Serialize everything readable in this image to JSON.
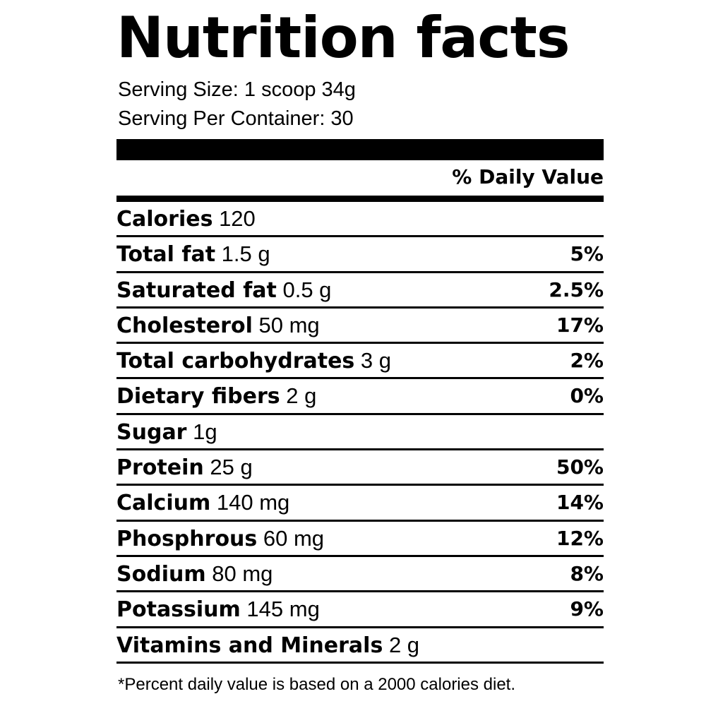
{
  "title": "Nutrition facts",
  "serving_size": "Serving Size: 1 scoop 34g",
  "servings_per_container": "Serving Per Container: 30",
  "daily_value_header": "% Daily Value",
  "nutrients": [
    {
      "name": "Calories",
      "amount": "120",
      "percent": ""
    },
    {
      "name": "Total fat",
      "amount": "1.5 g",
      "percent": "5%"
    },
    {
      "name": "Saturated fat",
      "amount": "0.5 g",
      "percent": "2.5%"
    },
    {
      "name": "Cholesterol",
      "amount": "50 mg",
      "percent": "17%"
    },
    {
      "name": "Total carbohydrates",
      "amount": "3 g",
      "percent": "2%"
    },
    {
      "name": "Dietary fibers",
      "amount": "2 g",
      "percent": "0%"
    },
    {
      "name": "Sugar",
      "amount": "1g",
      "percent": ""
    },
    {
      "name": "Protein",
      "amount": "25 g",
      "percent": "50%"
    },
    {
      "name": "Calcium",
      "amount": "140 mg",
      "percent": "14%"
    },
    {
      "name": "Phosphrous",
      "amount": "60 mg",
      "percent": "12%"
    },
    {
      "name": "Sodium",
      "amount": "80 mg",
      "percent": "8%"
    },
    {
      "name": "Potassium",
      "amount": "145 mg",
      "percent": "9%"
    },
    {
      "name": "Vitamins and Minerals",
      "amount": "2 g",
      "percent": ""
    }
  ],
  "footnote": "*Percent daily value is based on a 2000 calories diet."
}
